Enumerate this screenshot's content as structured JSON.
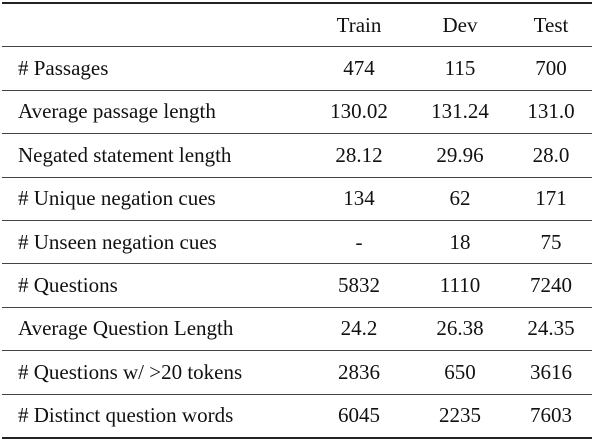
{
  "table": {
    "header": [
      "",
      "Train",
      "Dev",
      "Test"
    ],
    "rows": [
      [
        "# Passages",
        "474",
        "115",
        "700"
      ],
      [
        "Average passage length",
        "130.02",
        "131.24",
        "131.0"
      ],
      [
        "Negated statement length",
        "28.12",
        "29.96",
        "28.0"
      ],
      [
        "# Unique negation cues",
        "134",
        "62",
        "171"
      ],
      [
        "# Unseen negation cues",
        "-",
        "18",
        "75"
      ],
      [
        "# Questions",
        "5832",
        "1110",
        "7240"
      ],
      [
        "Average Question Length",
        "24.2",
        "26.38",
        "24.35"
      ],
      [
        "# Questions w/ >20 tokens",
        "2836",
        "650",
        "3616"
      ],
      [
        "# Distinct question words",
        "6045",
        "2235",
        "7603"
      ]
    ]
  }
}
